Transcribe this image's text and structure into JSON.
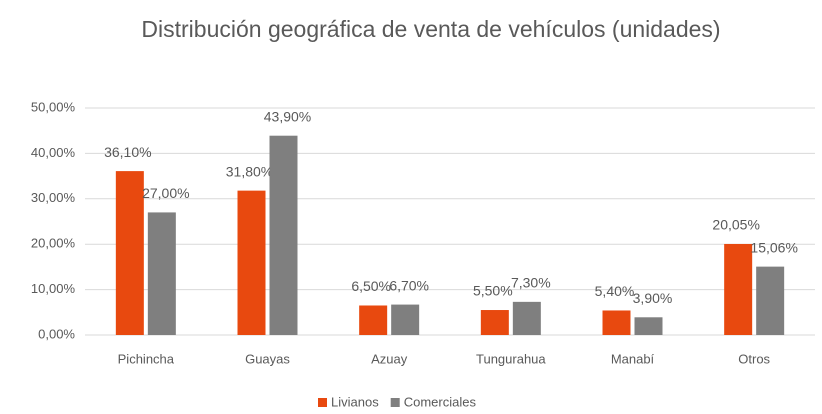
{
  "chart_data": {
    "type": "bar",
    "title": "Distribución geográfica de venta de vehículos (unidades)",
    "categories": [
      "Pichincha",
      "Guayas",
      "Azuay",
      "Tungurahua",
      "Manabí",
      "Otros"
    ],
    "series": [
      {
        "name": "Livianos",
        "color": "#e8490f",
        "values": [
          36.1,
          31.8,
          6.5,
          5.5,
          5.4,
          20.05
        ],
        "value_labels": [
          "36,10%",
          "31,80%",
          "6,50%",
          "5,50%",
          "5,40%",
          "20,05%"
        ]
      },
      {
        "name": "Comerciales",
        "color": "#7f7f7f",
        "values": [
          27.0,
          43.9,
          6.7,
          7.3,
          3.9,
          15.06
        ],
        "value_labels": [
          "27,00%",
          "43,90%",
          "6,70%",
          "7,30%",
          "3,90%",
          "15,06%"
        ]
      }
    ],
    "ylim": [
      0,
      50
    ],
    "yticks": [
      {
        "value": 0,
        "label": "0,00%"
      },
      {
        "value": 10,
        "label": "10,00%"
      },
      {
        "value": 20,
        "label": "20,00%"
      },
      {
        "value": 30,
        "label": "30,00%"
      },
      {
        "value": 40,
        "label": "40,00%"
      },
      {
        "value": 50,
        "label": "50,00%"
      }
    ],
    "grid": true
  }
}
